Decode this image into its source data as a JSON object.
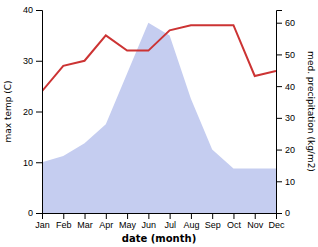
{
  "chart_data": {
    "type": "line",
    "xlabel": "date (month)",
    "ylabel": "max temp (C)",
    "y2label": "med. precipitation (kg/m2)",
    "categories": [
      "Jan",
      "Feb",
      "Mar",
      "Apr",
      "May",
      "Jun",
      "Jul",
      "Aug",
      "Sep",
      "Oct",
      "Nov",
      "Dec"
    ],
    "series": [
      {
        "type": "area",
        "axis": "y2",
        "color": "#c5cdf0",
        "values": [
          16,
          18,
          22,
          28,
          44,
          60,
          56,
          36,
          20,
          14,
          14,
          14
        ]
      },
      {
        "type": "line",
        "color": "#cc3333",
        "values": [
          24,
          29,
          30,
          35,
          32,
          32,
          36,
          37,
          37,
          37,
          27,
          28
        ]
      }
    ],
    "ylim": [
      0,
      40
    ],
    "yticks": [
      0,
      10,
      20,
      30,
      40
    ],
    "y2lim": [
      0,
      64
    ],
    "y2ticks": [
      0,
      10,
      20,
      30,
      40,
      50,
      60
    ],
    "grid": false
  }
}
